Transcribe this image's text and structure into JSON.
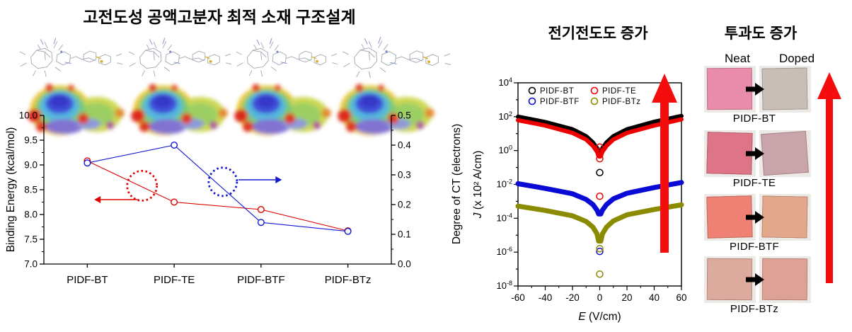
{
  "left_panel": {
    "title": "고전도성 공액고분자 최적 소재 구조설계",
    "chart": {
      "type": "line",
      "categories": [
        "PIDF-BT",
        "PIDF-TE",
        "PIDF-BTF",
        "PIDF-BTz"
      ],
      "left_axis": {
        "label": "Binding Energy (kcal/mol)",
        "min": 7.0,
        "max": 10.0,
        "ticks": [
          "10.0",
          "9.5",
          "9.0",
          "8.5",
          "8.0",
          "7.5",
          "7.0"
        ]
      },
      "right_axis": {
        "label": "Degree of CT (electrons)",
        "min": 0.0,
        "max": 0.5,
        "ticks": [
          "0.5",
          "0.4",
          "0.3",
          "0.2",
          "0.1",
          "0.0"
        ]
      },
      "series": [
        {
          "name": "Binding Energy",
          "axis": "left",
          "color": "#dd0000",
          "values": [
            9.08,
            8.25,
            8.1,
            7.67
          ]
        },
        {
          "name": "Degree of CT",
          "axis": "right",
          "color": "#1318cf",
          "values": [
            0.34,
            0.4,
            0.14,
            0.11
          ]
        }
      ],
      "annotations": {
        "red_circle": {
          "cx_cat": 0.63,
          "cy_val": 8.58,
          "r": 21,
          "color": "#dd0000"
        },
        "red_arrow": {
          "y_val": 8.3,
          "from_cat": 0.58,
          "to_cat": 0.08,
          "color": "#dd0000"
        },
        "blue_circle": {
          "cx_cat": 1.56,
          "cy_val": 8.66,
          "r": 20,
          "color": "#1318cf"
        },
        "blue_arrow": {
          "y_val": 8.7,
          "from_cat": 1.74,
          "to_cat": 2.24,
          "color": "#1318cf"
        }
      }
    }
  },
  "middle_panel": {
    "title": "전기전도도 증가",
    "arrow_color": "#f50d0d",
    "chart": {
      "type": "scatter",
      "xlabel": "E (V/cm)",
      "ylabel": "J (x 10² A/cm)",
      "x_ticks": [
        -60,
        -40,
        -20,
        0,
        20,
        40,
        60
      ],
      "y_exponents": [
        4,
        2,
        0,
        -2,
        -4,
        -6,
        -8
      ],
      "xlim": [
        -60,
        60
      ],
      "ylim_exp": [
        -8,
        4
      ],
      "legend": [
        {
          "label": "PIDF-BT",
          "color": "#000000"
        },
        {
          "label": "PIDF-TE",
          "color": "#ee0000"
        },
        {
          "label": "PIDF-BTF",
          "color": "#0a0ad6"
        },
        {
          "label": "PIDF-BTz",
          "color": "#8b8b00"
        }
      ],
      "series": [
        {
          "name": "PIDF-BT",
          "color": "#000000",
          "width": 6,
          "x": [
            -60,
            -40,
            -20,
            -10,
            -5,
            -2,
            -0.8,
            0.8,
            2,
            5,
            10,
            20,
            40,
            60
          ],
          "y": [
            100,
            48,
            18,
            7,
            3,
            1.4,
            0.9,
            0.9,
            1.4,
            3,
            7,
            18,
            50,
            110
          ],
          "outliers": [
            [
              0,
              0.05
            ]
          ]
        },
        {
          "name": "PIDF-TE",
          "color": "#ee0000",
          "width": 6,
          "x": [
            -60,
            -40,
            -20,
            -10,
            -5,
            -2,
            -0.8,
            0.8,
            2,
            5,
            10,
            20,
            40,
            60
          ],
          "y": [
            62,
            30,
            11,
            4.5,
            1.9,
            0.85,
            0.5,
            0.5,
            0.85,
            1.9,
            4.5,
            11,
            30,
            70
          ],
          "outliers": [
            [
              0,
              1.6
            ],
            [
              0,
              0.9
            ],
            [
              0,
              0.55
            ],
            [
              0,
              0.33
            ],
            [
              0,
              0.002
            ]
          ]
        },
        {
          "name": "PIDF-BTF",
          "color": "#0a0ad6",
          "width": 7,
          "x": [
            -60,
            -40,
            -20,
            -10,
            -5,
            -2,
            -0.8,
            0.8,
            2,
            5,
            10,
            20,
            40,
            60
          ],
          "y": [
            0.011,
            0.0058,
            0.0028,
            0.0013,
            0.00065,
            0.0003,
            0.00018,
            0.00018,
            0.0003,
            0.00065,
            0.0014,
            0.003,
            0.0065,
            0.013
          ],
          "outliers": [
            [
              0,
              1.1e-06
            ]
          ]
        },
        {
          "name": "PIDF-BTz",
          "color": "#8b8b00",
          "width": 7,
          "x": [
            -60,
            -40,
            -20,
            -10,
            -5,
            -2,
            -0.8,
            0.8,
            2,
            5,
            10,
            20,
            40,
            60
          ],
          "y": [
            0.00052,
            0.00029,
            0.00014,
            6.5e-05,
            3e-05,
            1.2e-05,
            4.5e-06,
            4.5e-06,
            1.2e-05,
            3e-05,
            7e-05,
            0.00016,
            0.00033,
            0.00062
          ],
          "outliers": [
            [
              0,
              1.6e-06
            ],
            [
              0,
              5e-08
            ]
          ]
        }
      ]
    }
  },
  "right_panel": {
    "title": "투과도 증가",
    "columns": [
      "Neat",
      "Doped"
    ],
    "arrow_color": "#f50d0d",
    "rows": [
      {
        "label": "PIDF-BT",
        "neat_color": "#e98cab",
        "doped_color": "#c7beb8"
      },
      {
        "label": "PIDF-TE",
        "neat_color": "#dd7487",
        "doped_color": "#c9a4ab"
      },
      {
        "label": "PIDF-BTF",
        "neat_color": "#ee8173",
        "doped_color": "#e3a78c"
      },
      {
        "label": "PIDF-BTz",
        "neat_color": "#ddab9e",
        "doped_color": "#dda295"
      }
    ]
  }
}
